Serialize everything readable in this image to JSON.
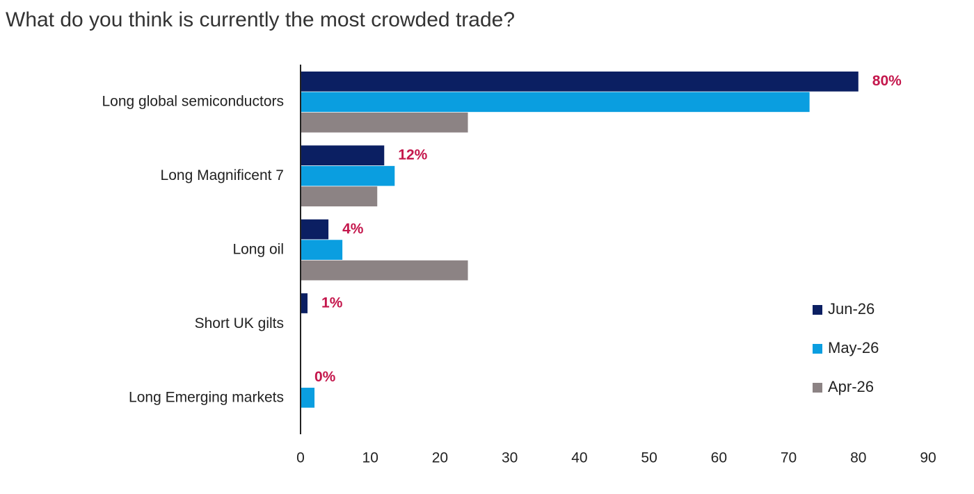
{
  "chart_data": {
    "type": "bar",
    "orientation": "horizontal",
    "subtitle": "What do you think is currently the most crowded trade?",
    "categories": [
      "Long global semiconductors",
      "Long Magnificent 7",
      "Long oil",
      "Short UK gilts",
      "Long Emerging markets"
    ],
    "series": [
      {
        "name": "Jun-26",
        "color": "#0b1f62",
        "values": [
          80,
          12,
          4,
          1,
          0
        ],
        "value_labels": [
          "80%",
          "12%",
          "4%",
          "1%",
          "0%"
        ]
      },
      {
        "name": "May-26",
        "color": "#0a9ee0",
        "values": [
          73,
          13.5,
          6,
          null,
          2
        ]
      },
      {
        "name": "Apr-26",
        "color": "#8c8384",
        "values": [
          24,
          11,
          24,
          null,
          null
        ]
      }
    ],
    "xlim": [
      0,
      90
    ],
    "xticks": [
      0,
      10,
      20,
      30,
      40,
      50,
      60,
      70,
      80,
      90
    ],
    "legend": "right"
  }
}
